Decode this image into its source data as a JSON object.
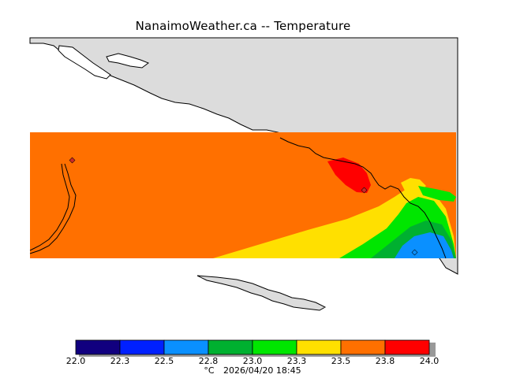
{
  "title": "NanaimoWeather.ca -- Temperature",
  "legend": {
    "unit": "°C",
    "timestamp": "2026/04/20 18:45",
    "ticks": [
      "22.0",
      "22.3",
      "22.5",
      "22.8",
      "23.0",
      "23.3",
      "23.5",
      "23.8",
      "24.0"
    ],
    "colors": [
      "#11007f",
      "#0020ff",
      "#0a90ff",
      "#00b030",
      "#00e600",
      "#ffe000",
      "#ff7000",
      "#ff0000"
    ]
  },
  "map": {
    "land_color": "#dcdcdc",
    "water_color": "#ffffff",
    "dominant_band_color": "#ff7000",
    "coastline_color": "#000000",
    "station_marker_color": "#cc2a2a"
  }
}
